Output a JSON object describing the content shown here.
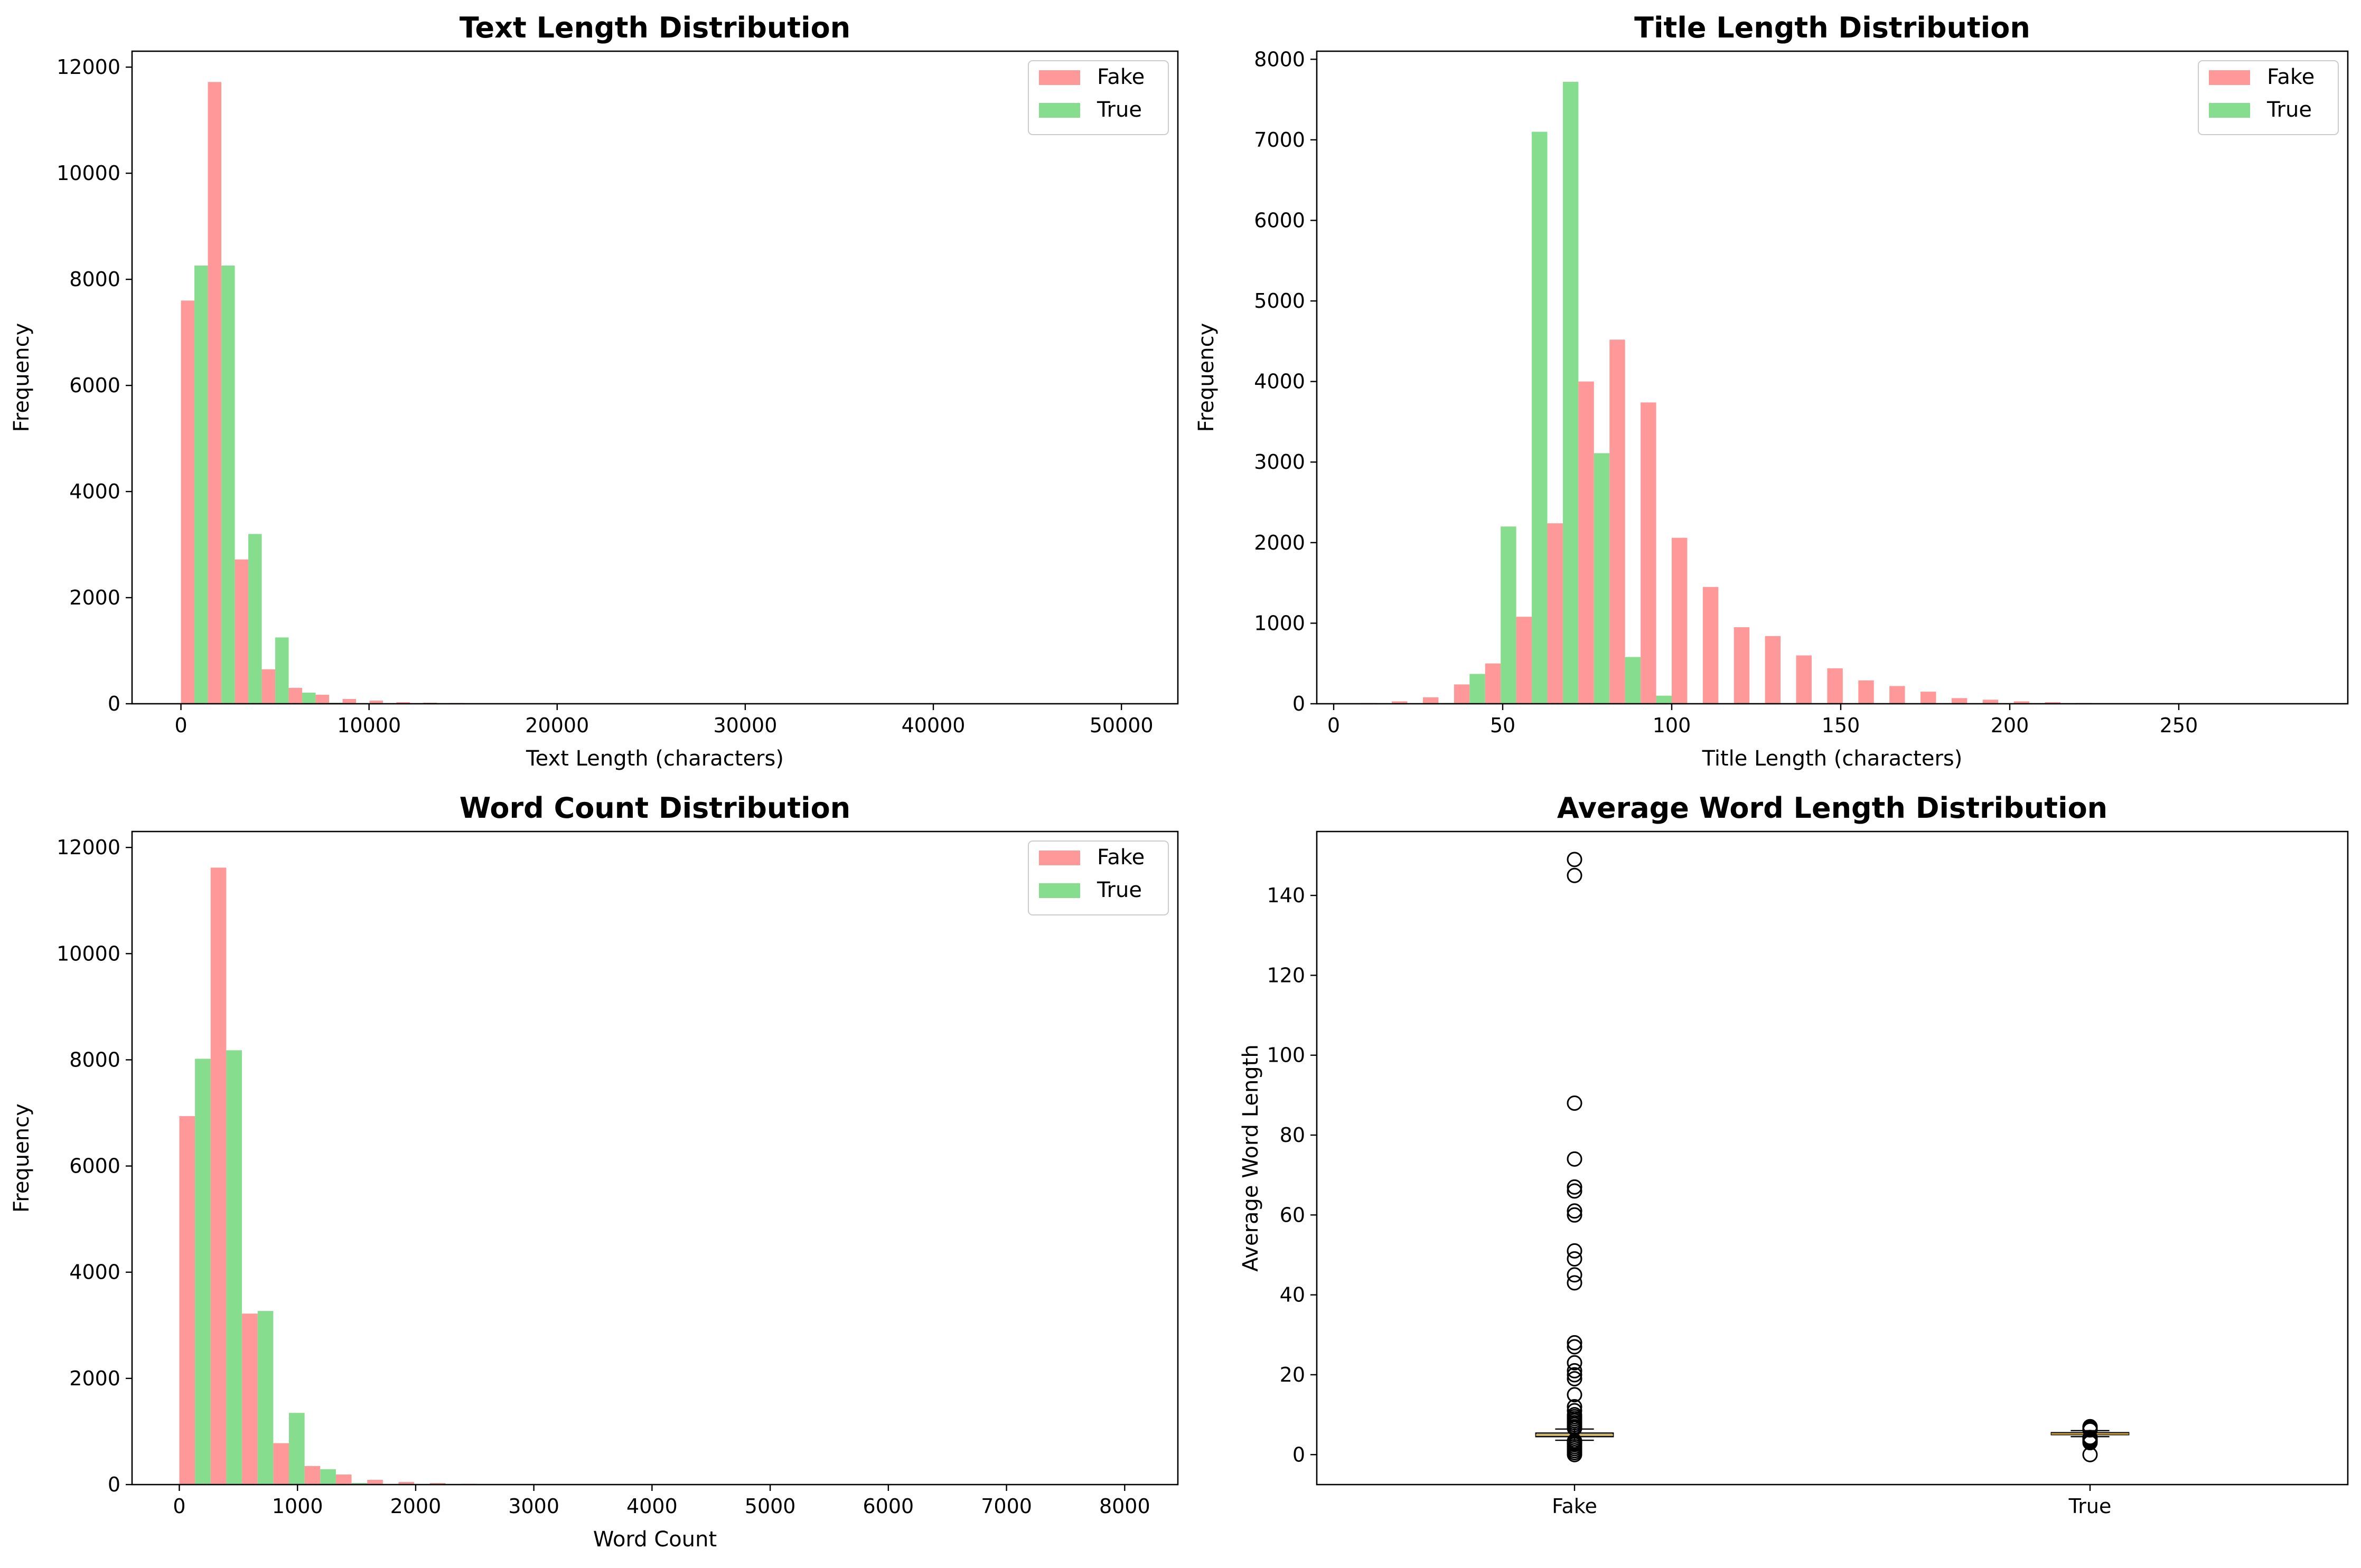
{
  "colors": {
    "fake": "#ff9999",
    "true": "#86dd8e",
    "median": "#c8a23c",
    "box_edge": "#000000"
  },
  "chart_data": [
    {
      "type": "bar",
      "title": "Text Length Distribution",
      "xlabel": "Text Length (characters)",
      "ylabel": "Frequency",
      "xlim": [
        -2600,
        53000
      ],
      "ylim": [
        0,
        12300
      ],
      "xticks": [
        0,
        10000,
        20000,
        30000,
        40000,
        50000
      ],
      "xtick_labels": [
        "0",
        "10000",
        "20000",
        "30000",
        "40000",
        "50000"
      ],
      "yticks": [
        0,
        2000,
        4000,
        6000,
        8000,
        10000,
        12000
      ],
      "ytick_labels": [
        "0",
        "2000",
        "4000",
        "6000",
        "8000",
        "10000",
        "12000"
      ],
      "bin_start": 0,
      "bin_width": 1432,
      "legend": "top-right",
      "series": [
        {
          "name": "Fake",
          "color": "fake",
          "values": [
            7600,
            11720,
            2720,
            650,
            300,
            170,
            90,
            60,
            30,
            20,
            15,
            10,
            8,
            5,
            4,
            3,
            2,
            2,
            1,
            1,
            0,
            0,
            0,
            0,
            0,
            0,
            0,
            0,
            0,
            0,
            0,
            0,
            0,
            0,
            0,
            1
          ]
        },
        {
          "name": "True",
          "color": "true",
          "values": [
            8260,
            8260,
            3200,
            1250,
            210,
            20,
            5,
            2,
            1,
            0,
            0,
            0,
            0,
            0,
            0,
            0,
            0,
            0,
            0,
            0,
            0,
            0,
            0,
            0,
            0,
            0,
            0,
            0,
            0,
            0,
            0,
            0,
            0,
            0,
            0,
            0
          ]
        }
      ]
    },
    {
      "type": "bar",
      "title": "Title Length Distribution",
      "xlabel": "Title Length (characters)",
      "ylabel": "Frequency",
      "xlim": [
        -5,
        300
      ],
      "ylim": [
        0,
        8100
      ],
      "xticks": [
        0,
        50,
        100,
        150,
        200,
        250
      ],
      "xtick_labels": [
        "0",
        "50",
        "100",
        "150",
        "200",
        "250"
      ],
      "yticks": [
        0,
        1000,
        2000,
        3000,
        4000,
        5000,
        6000,
        7000,
        8000
      ],
      "ytick_labels": [
        "0",
        "1000",
        "2000",
        "3000",
        "4000",
        "5000",
        "6000",
        "7000",
        "8000"
      ],
      "bin_start": 8,
      "bin_width": 9.2,
      "legend": "top-right",
      "series": [
        {
          "name": "Fake",
          "color": "fake",
          "values": [
            10,
            30,
            80,
            240,
            500,
            1080,
            2240,
            4000,
            4520,
            3740,
            2060,
            1450,
            950,
            840,
            600,
            440,
            290,
            220,
            150,
            70,
            50,
            30,
            20,
            10,
            5,
            3,
            2,
            1,
            0,
            0,
            0
          ]
        },
        {
          "name": "True",
          "color": "true",
          "values": [
            0,
            0,
            10,
            370,
            2200,
            7100,
            7720,
            3110,
            580,
            100,
            0,
            0,
            0,
            0,
            0,
            0,
            0,
            0,
            0,
            0,
            0,
            0,
            0,
            0,
            0,
            0,
            0,
            0,
            0,
            0,
            0
          ]
        }
      ]
    },
    {
      "type": "bar",
      "title": "Word Count Distribution",
      "xlabel": "Word Count",
      "ylabel": "Frequency",
      "xlim": [
        -400,
        8450
      ],
      "ylim": [
        0,
        12300
      ],
      "xticks": [
        0,
        1000,
        2000,
        3000,
        4000,
        5000,
        6000,
        7000,
        8000
      ],
      "xtick_labels": [
        "0",
        "1000",
        "2000",
        "3000",
        "4000",
        "5000",
        "6000",
        "7000",
        "8000"
      ],
      "yticks": [
        0,
        2000,
        4000,
        6000,
        8000,
        10000,
        12000
      ],
      "ytick_labels": [
        "0",
        "2000",
        "4000",
        "6000",
        "8000",
        "10000",
        "12000"
      ],
      "bin_start": 0,
      "bin_width": 265,
      "legend": "top-right",
      "series": [
        {
          "name": "Fake",
          "color": "fake",
          "values": [
            6940,
            11620,
            3220,
            780,
            350,
            190,
            90,
            50,
            30,
            15,
            10,
            5,
            4,
            3,
            2,
            1,
            0,
            0,
            0,
            0,
            0,
            0,
            0,
            0,
            0,
            0,
            0,
            0,
            0,
            0,
            1
          ]
        },
        {
          "name": "True",
          "color": "true",
          "values": [
            8020,
            8180,
            3270,
            1350,
            290,
            30,
            5,
            2,
            1,
            0,
            0,
            0,
            0,
            0,
            0,
            0,
            0,
            0,
            0,
            0,
            0,
            0,
            0,
            0,
            0,
            0,
            0,
            0,
            0,
            0,
            0
          ]
        }
      ]
    },
    {
      "type": "box",
      "title": "Average Word Length Distribution",
      "xlabel": "",
      "ylabel": "Average Word Length",
      "ylim": [
        -7.5,
        156
      ],
      "yticks": [
        0,
        20,
        40,
        60,
        80,
        100,
        120,
        140
      ],
      "ytick_labels": [
        "0",
        "20",
        "40",
        "60",
        "80",
        "100",
        "120",
        "140"
      ],
      "categories": [
        "Fake",
        "True"
      ],
      "boxes": [
        {
          "name": "Fake",
          "q1": 4.5,
          "median": 4.9,
          "q3": 5.4,
          "whisker_low": 3.6,
          "whisker_high": 6.4,
          "outliers": [
            149,
            145,
            88,
            74,
            67,
            66,
            61,
            60,
            51,
            49,
            45,
            43,
            28,
            27,
            23,
            21,
            20,
            19,
            15,
            12,
            11,
            10,
            9.5,
            9,
            8.5,
            8,
            7.5,
            7,
            6.8,
            6.6,
            3.4,
            3.2,
            3.0,
            2.8,
            2.5,
            2.0,
            1.5,
            1.0,
            0.5,
            0
          ]
        },
        {
          "name": "True",
          "q1": 5.0,
          "median": 5.2,
          "q3": 5.5,
          "whisker_low": 4.5,
          "whisker_high": 6.0,
          "outliers": [
            7.0,
            6.8,
            6.6,
            6.4,
            6.2,
            4.3,
            4.0,
            3.7,
            3.4,
            3.0,
            0
          ]
        }
      ]
    }
  ]
}
